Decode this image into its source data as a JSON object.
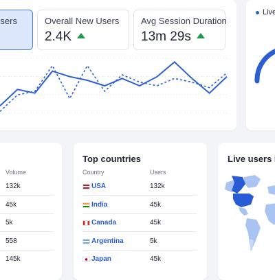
{
  "stats": [
    {
      "label": "Users",
      "value": ""
    },
    {
      "label": "Overall New Users",
      "value": "2.4K"
    },
    {
      "label": "Avg Session Duration",
      "value": "13m 29s"
    }
  ],
  "live_label": "Live",
  "volume_table": {
    "header": "Volume",
    "rows": [
      "132k",
      "45k",
      "5k",
      "558",
      "145k"
    ]
  },
  "top_countries": {
    "title": "Top countries",
    "col_country": "Country",
    "col_users": "Users",
    "rows": [
      {
        "country": "USA",
        "users": "132k"
      },
      {
        "country": "India",
        "users": "45k"
      },
      {
        "country": "Canada",
        "users": "45k"
      },
      {
        "country": "Argentina",
        "users": "5k"
      },
      {
        "country": "Japan",
        "users": "45k"
      }
    ]
  },
  "live_users_map": {
    "title": "Live users b"
  },
  "colors": {
    "accent": "#2e5fd0",
    "positive": "#1e9a4f",
    "map_dark": "#2a5bd7",
    "map_light": "#a9c4f2"
  },
  "chart_data": {
    "type": "line",
    "series": [
      {
        "values": [
          8,
          26,
          22,
          46,
          40,
          36,
          30,
          38,
          30,
          40,
          56,
          38,
          22,
          40
        ]
      },
      {
        "values": [
          2,
          20,
          24,
          52,
          16,
          52,
          24,
          42,
          34,
          30,
          38,
          34,
          28,
          44
        ]
      }
    ],
    "grid": true
  }
}
